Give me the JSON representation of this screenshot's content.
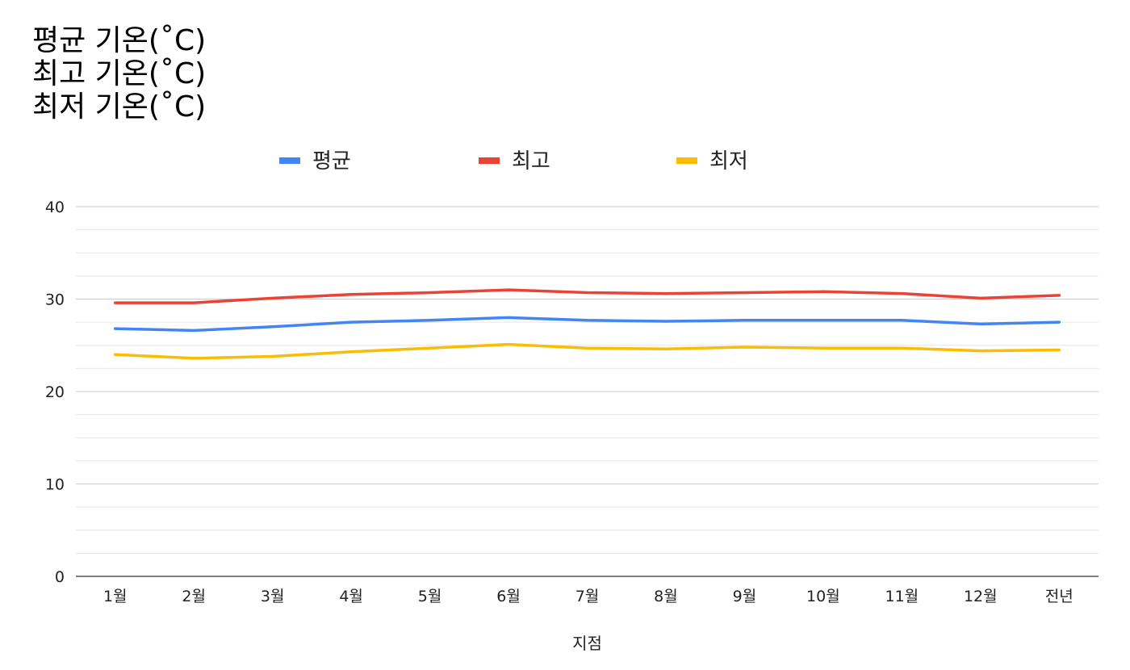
{
  "chart_data": {
    "type": "line",
    "title_lines": [
      "평균 기온(˚C)",
      "최고 기온(˚C)",
      "최저 기온(˚C)"
    ],
    "xlabel": "지점",
    "ylabel": "",
    "categories": [
      "1월",
      "2월",
      "3월",
      "4월",
      "5월",
      "6월",
      "7월",
      "8월",
      "9월",
      "10월",
      "11월",
      "12월",
      "전년"
    ],
    "ylim": [
      0,
      40
    ],
    "yticks": [
      0,
      10,
      20,
      30,
      40
    ],
    "grid": true,
    "legend_position": "top",
    "series": [
      {
        "name": "평균",
        "color": "#4285f4",
        "values": [
          26.8,
          26.6,
          27.0,
          27.5,
          27.7,
          28.0,
          27.7,
          27.6,
          27.7,
          27.7,
          27.7,
          27.3,
          27.5
        ]
      },
      {
        "name": "최고",
        "color": "#ea4335",
        "values": [
          29.6,
          29.6,
          30.1,
          30.5,
          30.7,
          31.0,
          30.7,
          30.6,
          30.7,
          30.8,
          30.6,
          30.1,
          30.4
        ]
      },
      {
        "name": "최저",
        "color": "#fbbc04",
        "values": [
          24.0,
          23.6,
          23.8,
          24.3,
          24.7,
          25.1,
          24.7,
          24.6,
          24.8,
          24.7,
          24.7,
          24.4,
          24.5
        ]
      }
    ]
  }
}
